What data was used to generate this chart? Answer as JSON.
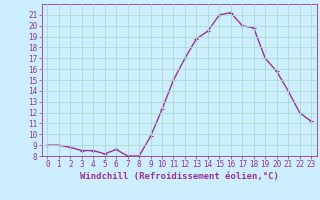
{
  "x": [
    0,
    1,
    2,
    3,
    4,
    5,
    6,
    7,
    8,
    9,
    10,
    11,
    12,
    13,
    14,
    15,
    16,
    17,
    18,
    19,
    20,
    21,
    22,
    23
  ],
  "y": [
    9.0,
    9.0,
    8.8,
    8.5,
    8.5,
    8.2,
    8.6,
    8.0,
    8.0,
    9.8,
    12.3,
    15.0,
    17.0,
    18.8,
    19.5,
    21.0,
    21.2,
    20.0,
    19.8,
    17.0,
    15.8,
    14.0,
    12.0,
    11.2
  ],
  "line_color": "#993399",
  "marker": "+",
  "marker_size": 3,
  "linewidth": 1.0,
  "bg_color": "#cceeff",
  "grid_color": "#aaddcc",
  "xlabel": "Windchill (Refroidissement éolien,°C)",
  "xlabel_fontsize": 6.5,
  "tick_fontsize": 5.5,
  "ylim": [
    8,
    22
  ],
  "xlim": [
    -0.5,
    23.5
  ],
  "yticks": [
    8,
    9,
    10,
    11,
    12,
    13,
    14,
    15,
    16,
    17,
    18,
    19,
    20,
    21
  ],
  "xticks": [
    0,
    1,
    2,
    3,
    4,
    5,
    6,
    7,
    8,
    9,
    10,
    11,
    12,
    13,
    14,
    15,
    16,
    17,
    18,
    19,
    20,
    21,
    22,
    23
  ]
}
